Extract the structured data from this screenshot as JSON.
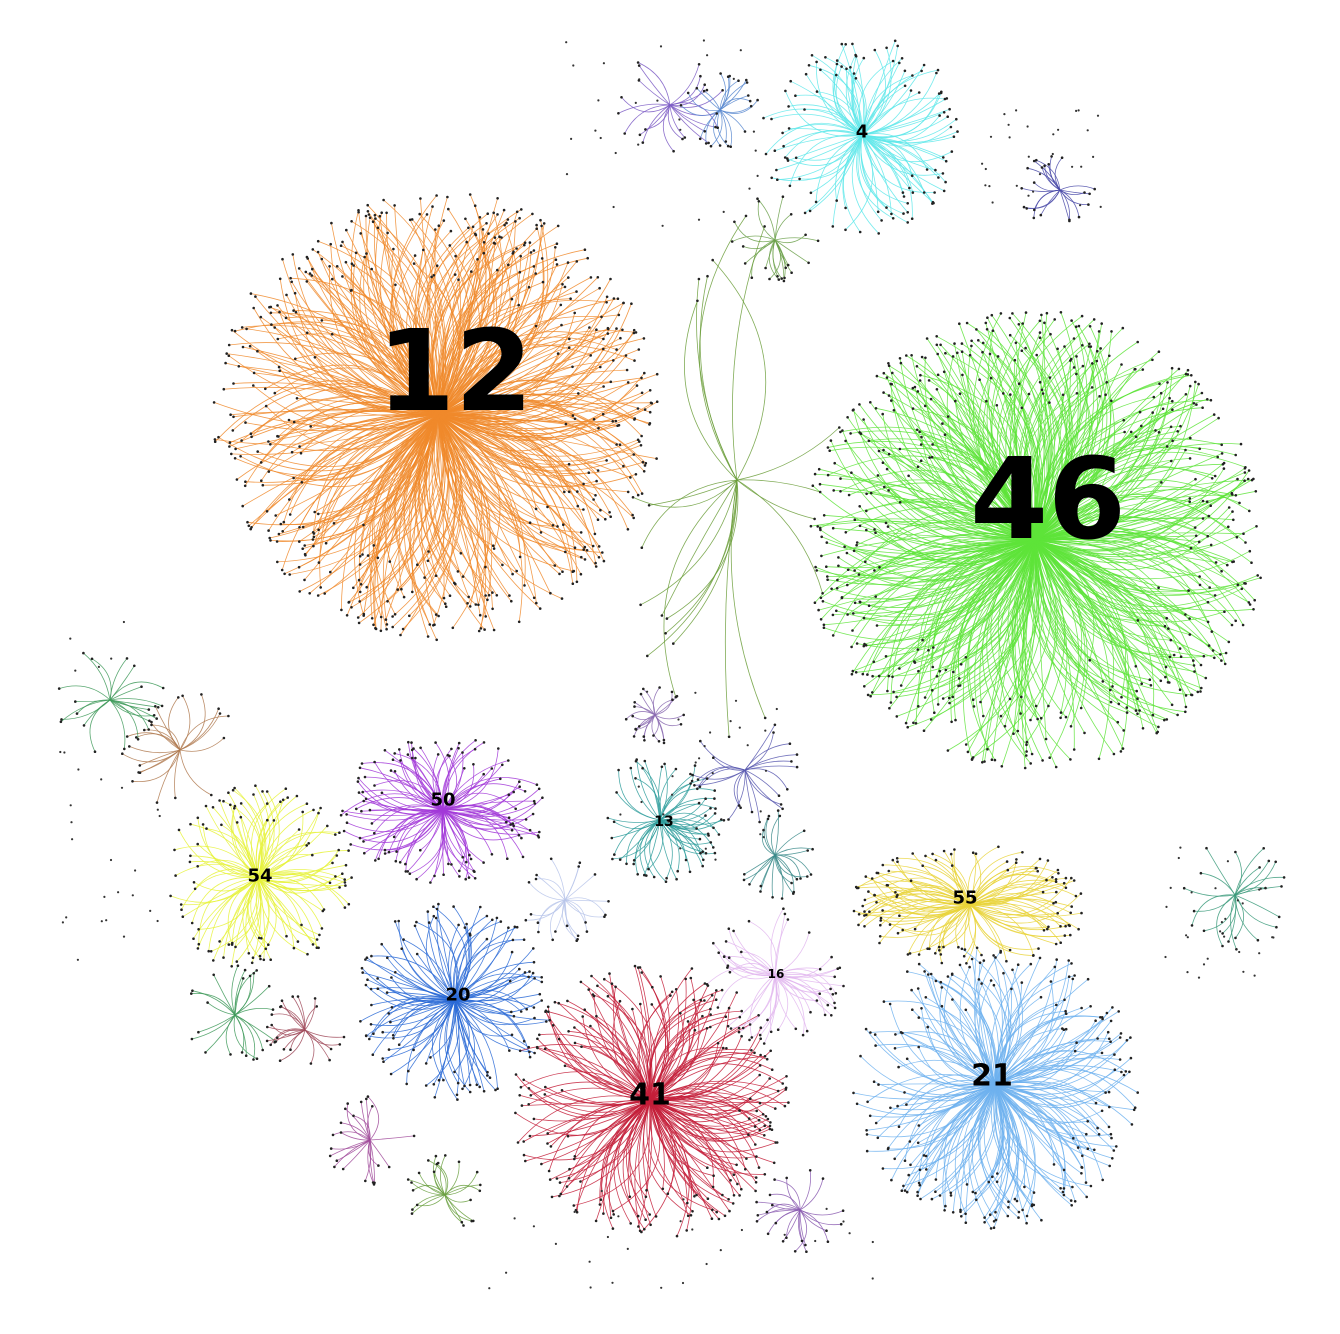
{
  "diagram": {
    "type": "network-graph",
    "clusters": [
      {
        "id": "c12",
        "label": "12",
        "color": "#f08a2c",
        "radius": 225,
        "edges": 520,
        "label_size": 112,
        "major": true
      },
      {
        "id": "c46",
        "label": "46",
        "color": "#5ee43a",
        "radius": 230,
        "edges": 560,
        "label_size": 112,
        "major": true
      },
      {
        "id": "c4",
        "label": "4",
        "color": "#5fe8ea",
        "radius": 100,
        "edges": 110,
        "label_size": 18
      },
      {
        "id": "c50",
        "label": "50",
        "color": "#a238d8",
        "radius": 105,
        "edges": 120,
        "label_size": 18
      },
      {
        "id": "c54",
        "label": "54",
        "color": "#e6f23a",
        "radius": 95,
        "edges": 110,
        "label_size": 18
      },
      {
        "id": "c20",
        "label": "20",
        "color": "#2a6ad6",
        "radius": 100,
        "edges": 120,
        "label_size": 18
      },
      {
        "id": "c41",
        "label": "41",
        "color": "#c41e3a",
        "radius": 140,
        "edges": 220,
        "label_size": 30
      },
      {
        "id": "c13",
        "label": "13",
        "color": "#2f9e9c",
        "radius": 65,
        "edges": 60,
        "label_size": 14
      },
      {
        "id": "c16",
        "label": "16",
        "color": "#e2b7ef",
        "radius": 70,
        "edges": 50,
        "label_size": 12
      },
      {
        "id": "c55",
        "label": "55",
        "color": "#e9d43a",
        "radius": 120,
        "edges": 120,
        "label_size": 18
      },
      {
        "id": "c21",
        "label": "21",
        "color": "#6fb1ee",
        "radius": 145,
        "edges": 230,
        "label_size": 30
      }
    ],
    "minor_groups": [
      {
        "id": "m1",
        "color": "#7b5bc4",
        "radius": 55
      },
      {
        "id": "m2",
        "color": "#6ba04a",
        "radius": 45
      },
      {
        "id": "m3",
        "color": "#4a4aa8",
        "radius": 40
      },
      {
        "id": "m4",
        "color": "#6b9e3a",
        "radius": 125
      },
      {
        "id": "m5",
        "color": "#b07a50",
        "radius": 60
      },
      {
        "id": "m6",
        "color": "#3f9a5a",
        "radius": 55
      },
      {
        "id": "m7",
        "color": "#5a5ab0",
        "radius": 55
      },
      {
        "id": "m8",
        "color": "#3a8a8a",
        "radius": 45
      },
      {
        "id": "m9",
        "color": "#b8c6ea",
        "radius": 45
      },
      {
        "id": "m10",
        "color": "#3f9a5a",
        "radius": 50
      },
      {
        "id": "m11",
        "color": "#a04a5a",
        "radius": 40
      },
      {
        "id": "m12",
        "color": "#a04a9a",
        "radius": 45
      },
      {
        "id": "m13",
        "color": "#6aa040",
        "radius": 40
      },
      {
        "id": "m14",
        "color": "#8a5ab0",
        "radius": 45
      },
      {
        "id": "m15",
        "color": "#3a9a7a",
        "radius": 55
      },
      {
        "id": "m16",
        "color": "#5a8ad0",
        "radius": 40
      },
      {
        "id": "m17",
        "color": "#8a6ab0",
        "radius": 30
      }
    ]
  }
}
